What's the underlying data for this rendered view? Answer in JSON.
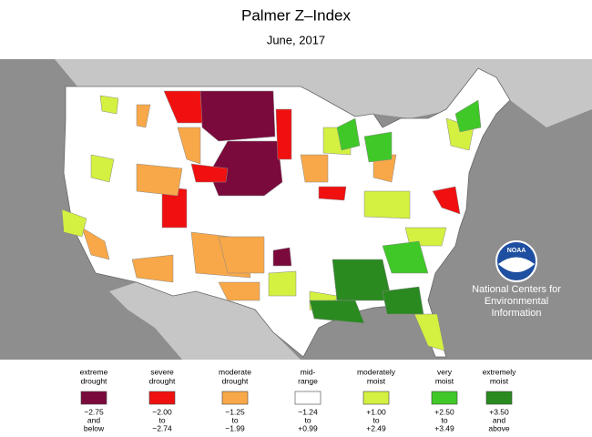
{
  "header": {
    "title": "Palmer Z–Index",
    "subtitle": "June, 2017"
  },
  "logo": {
    "text": "NOAA",
    "caption": [
      "National Centers for",
      "Environmental",
      "Information"
    ]
  },
  "legend": [
    {
      "label": [
        "extreme",
        "drought"
      ],
      "range": [
        "−2.75",
        "and",
        "below"
      ],
      "color": "#7b0a3c"
    },
    {
      "label": [
        "severe",
        "drought"
      ],
      "range": [
        "−2.00",
        "to",
        "−2.74"
      ],
      "color": "#f01010"
    },
    {
      "label": [
        "moderate",
        "drought"
      ],
      "range": [
        "−1.25",
        "to",
        "−1.99"
      ],
      "color": "#f8a848"
    },
    {
      "label": [
        "mid-",
        "range"
      ],
      "range": [
        "−1.24",
        "to",
        "+0.99"
      ],
      "color": "#ffffff"
    },
    {
      "label": [
        "moderately",
        "moist"
      ],
      "range": [
        "+1.00",
        "to",
        "+2.49"
      ],
      "color": "#d4f040"
    },
    {
      "label": [
        "very",
        "moist"
      ],
      "range": [
        "+2.50",
        "to",
        "+3.49"
      ],
      "color": "#40c828"
    },
    {
      "label": [
        "extremely",
        "moist"
      ],
      "range": [
        "+3.50",
        "and",
        "above"
      ],
      "color": "#2a8a20"
    }
  ]
}
